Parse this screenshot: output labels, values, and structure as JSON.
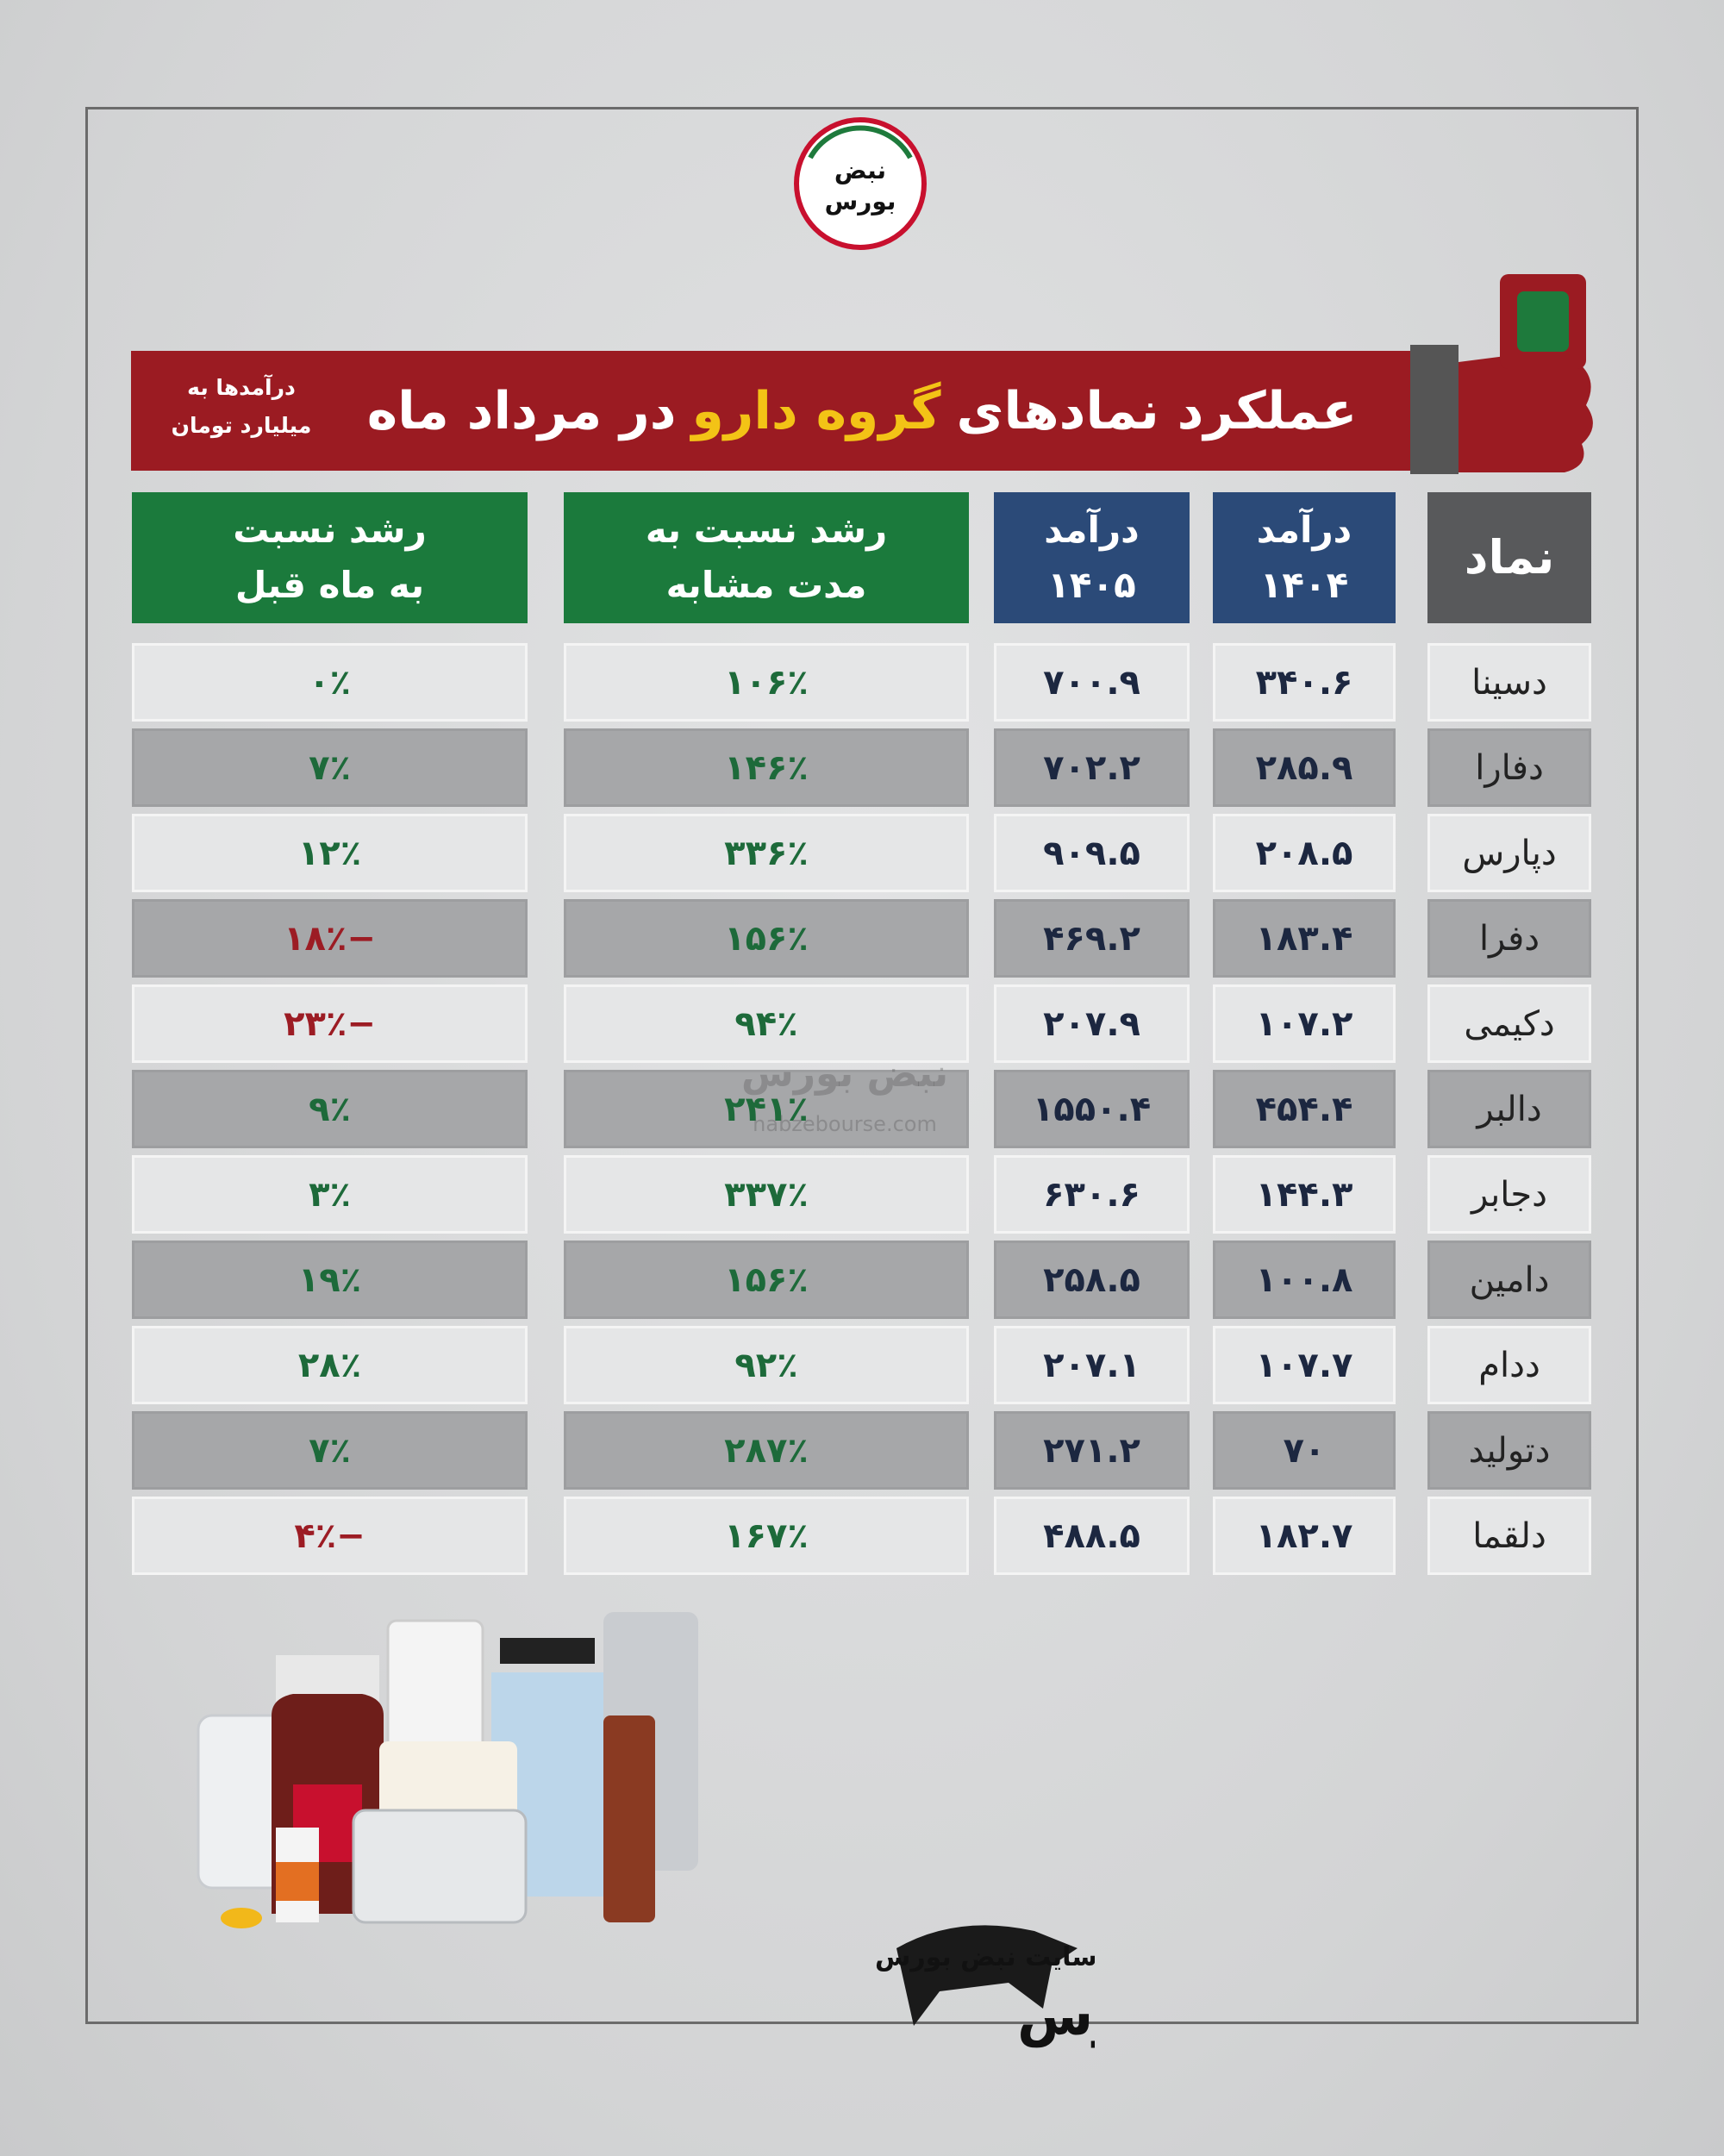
{
  "logo": {
    "text_top": "نبض",
    "text_bottom": "بورس"
  },
  "header": {
    "title_start": "عملکرد نمادهای",
    "title_highlight": "گروه دارو",
    "title_end": "در مرداد ماه",
    "unit_note": [
      "درآمدها به",
      "میلیارد تومان"
    ]
  },
  "table": {
    "headers": [
      [
        "نماد"
      ],
      [
        "درآمد",
        "۱۴۰۴"
      ],
      [
        "درآمد",
        "۱۴۰۵"
      ],
      [
        "رشد نسبت به",
        "مدت مشابه"
      ],
      [
        "رشد نسبت",
        "به ماه قبل"
      ]
    ],
    "rows": [
      [
        "دسینا",
        "۳۴۰.۶",
        "۷۰۰.۹",
        "۱۰۶٪",
        "۰٪"
      ],
      [
        "دفارا",
        "۲۸۵.۹",
        "۷۰۲.۲",
        "۱۴۶٪",
        "۷٪"
      ],
      [
        "دپارس",
        "۲۰۸.۵",
        "۹۰۹.۵",
        "۳۳۶٪",
        "۱۲٪"
      ],
      [
        "دفرا",
        "۱۸۳.۴",
        "۴۶۹.۲",
        "۱۵۶٪",
        "−۱۸٪"
      ],
      [
        "دکیمی",
        "۱۰۷.۲",
        "۲۰۷.۹",
        "۹۴٪",
        "−۲۳٪"
      ],
      [
        "دالبر",
        "۴۵۴.۴",
        "۱۵۵۰.۴",
        "۲۴۱٪",
        "۹٪"
      ],
      [
        "دجابر",
        "۱۴۴.۳",
        "۶۳۰.۶",
        "۳۳۷٪",
        "۳٪"
      ],
      [
        "دامین",
        "۱۰۰.۸",
        "۲۵۸.۵",
        "۱۵۶٪",
        "۱۹٪"
      ],
      [
        "ددام",
        "۱۰۷.۷",
        "۲۰۷.۱",
        "۹۲٪",
        "۲۸٪"
      ],
      [
        "دتولید",
        "۷۰",
        "۲۷۱.۲",
        "۲۸۷٪",
        "۷٪"
      ],
      [
        "دلقما",
        "۱۸۲.۷",
        "۴۸۸.۵",
        "۱۶۷٪",
        "−۴٪"
      ]
    ]
  },
  "watermark": {
    "text": "نبض بورس",
    "url": "nabzebourse.com"
  },
  "footer": {
    "site_label": "سایت نبض بورس",
    "brand": "نبض بورس"
  }
}
